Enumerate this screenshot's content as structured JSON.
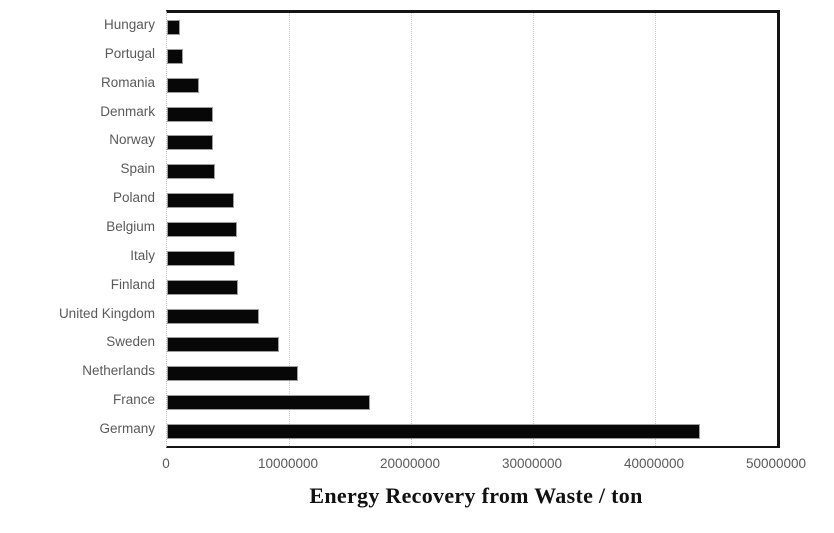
{
  "chart_data": {
    "type": "bar",
    "orientation": "horizontal",
    "title": "",
    "xlabel": "Energy Recovery from Waste / ton",
    "ylabel": "",
    "categories_top_to_bottom": [
      "Hungary",
      "Portugal",
      "Romania",
      "Denmark",
      "Norway",
      "Spain",
      "Poland",
      "Belgium",
      "Italy",
      "Finland",
      "United Kingdom",
      "Sweden",
      "Netherlands",
      "France",
      "Germany"
    ],
    "values": [
      1100000,
      1300000,
      2600000,
      3800000,
      3800000,
      3900000,
      5500000,
      5700000,
      5600000,
      5800000,
      7500000,
      9200000,
      10700000,
      16600000,
      43700000
    ],
    "xlim": [
      0,
      50000000
    ],
    "xticks": [
      0,
      10000000,
      20000000,
      30000000,
      40000000,
      50000000
    ],
    "xtick_labels": [
      "0",
      "10000000",
      "20000000",
      "30000000",
      "40000000",
      "50000000"
    ],
    "grid": "vertical-dotted",
    "legend": "none",
    "colors": {
      "bar_fill": "#070707",
      "bar_border": "#9e9e9e",
      "label_text": "#595959",
      "axis_border": "#141414",
      "gridline": "#c9c9c9",
      "background": "#ffffff"
    }
  }
}
